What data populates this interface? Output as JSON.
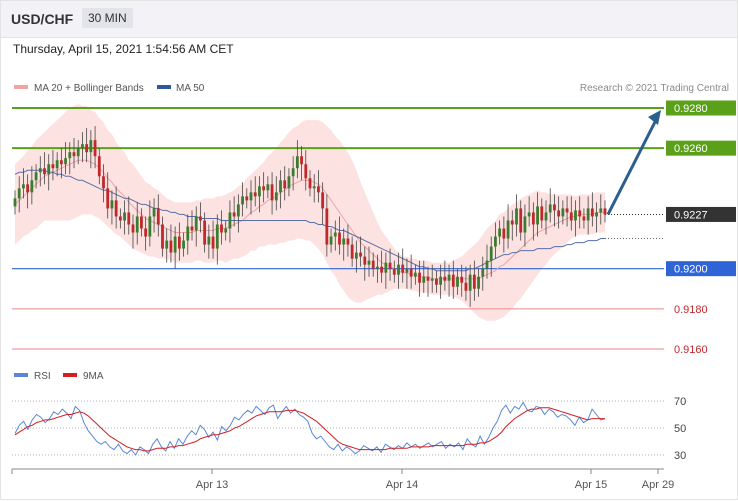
{
  "header": {
    "pair": "USD/CHF",
    "timeframe": "30 MIN",
    "datetime": "Thursday, April 15, 2021 1:54:56 AM CET"
  },
  "legend": {
    "ma20": "MA 20 + Bollinger Bands",
    "ma50": "MA 50",
    "copyright": "Research © 2021 Trading Central",
    "rsi": "RSI",
    "rsi_ma": "9MA"
  },
  "colors": {
    "up_candle": "#3a7d2e",
    "down_candle": "#c0282c",
    "bollinger_fill": "#fde0e0",
    "ma20": "#f0a4a4",
    "ma50": "#5a6fa8",
    "resistance": "#5aa018",
    "support_blue": "#2f64d6",
    "support_red": "#e88a8a",
    "current": "#333333",
    "arrow": "#2b5f8e",
    "rsi": "#5b86d6",
    "rsi_ma": "#d02020"
  },
  "chart_data": [
    {
      "type": "candlestick",
      "title": "USD/CHF",
      "x_ticks": [
        "Apr 13",
        "Apr 14",
        "Apr 15",
        "Apr 29"
      ],
      "price_levels": [
        {
          "value": 0.928,
          "label": "0.9280",
          "kind": "resistance"
        },
        {
          "value": 0.926,
          "label": "0.9260",
          "kind": "resistance"
        },
        {
          "value": 0.9227,
          "label": "0.9227",
          "kind": "last"
        },
        {
          "value": 0.92,
          "label": "0.9200",
          "kind": "support"
        },
        {
          "value": 0.918,
          "label": "0.9180",
          "kind": "support"
        },
        {
          "value": 0.916,
          "label": "0.9160",
          "kind": "support"
        }
      ],
      "close": [
        0.9235,
        0.924,
        0.9242,
        0.9238,
        0.9244,
        0.9248,
        0.925,
        0.9247,
        0.9252,
        0.925,
        0.9254,
        0.9252,
        0.9255,
        0.9258,
        0.9256,
        0.926,
        0.9262,
        0.9258,
        0.9264,
        0.9256,
        0.9246,
        0.924,
        0.923,
        0.9234,
        0.9226,
        0.9224,
        0.9228,
        0.9222,
        0.9218,
        0.9226,
        0.922,
        0.9216,
        0.9226,
        0.923,
        0.9222,
        0.921,
        0.9214,
        0.9208,
        0.9216,
        0.921,
        0.9214,
        0.9221,
        0.9219,
        0.9226,
        0.9224,
        0.9212,
        0.9216,
        0.921,
        0.9222,
        0.9218,
        0.922,
        0.9228,
        0.9226,
        0.9232,
        0.9236,
        0.9234,
        0.9238,
        0.9236,
        0.9241,
        0.9239,
        0.9242,
        0.9234,
        0.9238,
        0.9244,
        0.924,
        0.9246,
        0.925,
        0.9256,
        0.9252,
        0.9245,
        0.924,
        0.9241,
        0.9238,
        0.923,
        0.9212,
        0.9216,
        0.9218,
        0.9212,
        0.9215,
        0.9212,
        0.9205,
        0.9208,
        0.9206,
        0.9202,
        0.9204,
        0.92,
        0.9201,
        0.9198,
        0.9203,
        0.92,
        0.9197,
        0.9202,
        0.9198,
        0.92,
        0.9196,
        0.9198,
        0.9193,
        0.9196,
        0.9194,
        0.9195,
        0.9192,
        0.9196,
        0.9194,
        0.9197,
        0.9191,
        0.9196,
        0.9193,
        0.9189,
        0.9197,
        0.919,
        0.9196,
        0.92,
        0.9204,
        0.9211,
        0.9216,
        0.922,
        0.9215,
        0.9224,
        0.9222,
        0.923,
        0.9218,
        0.9226,
        0.9228,
        0.9222,
        0.9231,
        0.9224,
        0.9228,
        0.9232,
        0.9229,
        0.9226,
        0.923,
        0.9228,
        0.9224,
        0.9229,
        0.9226,
        0.9224,
        0.923,
        0.9226,
        0.9228,
        0.923,
        0.9227
      ],
      "ma20": [
        0.9232,
        0.9234,
        0.9236,
        0.9238,
        0.924,
        0.9242,
        0.9244,
        0.9246,
        0.9247,
        0.9248,
        0.9249,
        0.925,
        0.9251,
        0.9252,
        0.9253,
        0.9254,
        0.9254,
        0.9254,
        0.9253,
        0.9252,
        0.925,
        0.9248,
        0.9245,
        0.9243,
        0.924,
        0.9238,
        0.9236,
        0.9233,
        0.9231,
        0.9229,
        0.9227,
        0.9225,
        0.9224,
        0.9223,
        0.9222,
        0.9221,
        0.922,
        0.9219,
        0.9218,
        0.9218,
        0.9218,
        0.9218,
        0.9218,
        0.9219,
        0.9219,
        0.9219,
        0.9219,
        0.9219,
        0.922,
        0.922,
        0.922,
        0.9221,
        0.9222,
        0.9223,
        0.9224,
        0.9226,
        0.9228,
        0.9229,
        0.9231,
        0.9232,
        0.9234,
        0.9235,
        0.9236,
        0.9238,
        0.9239,
        0.9241,
        0.9242,
        0.9243,
        0.9244,
        0.9244,
        0.9244,
        0.9243,
        0.9242,
        0.924,
        0.9237,
        0.9234,
        0.9231,
        0.9228,
        0.9225,
        0.9222,
        0.9219,
        0.9216,
        0.9213,
        0.9211,
        0.9209,
        0.9207,
        0.9205,
        0.9203,
        0.9202,
        0.9201,
        0.92,
        0.9199,
        0.9198,
        0.9198,
        0.9197,
        0.9197,
        0.9196,
        0.9196,
        0.9196,
        0.9195,
        0.9195,
        0.9195,
        0.9195,
        0.9195,
        0.9195,
        0.9195,
        0.9195,
        0.9195,
        0.9195,
        0.9195,
        0.9195,
        0.9196,
        0.9197,
        0.9198,
        0.9199,
        0.9201,
        0.9202,
        0.9204,
        0.9206,
        0.9208,
        0.921,
        0.9212,
        0.9214,
        0.9216,
        0.9218,
        0.9219,
        0.922,
        0.9221,
        0.9222,
        0.9223,
        0.9224,
        0.9225,
        0.9226,
        0.9226,
        0.9227,
        0.9227,
        0.9227,
        0.9227,
        0.9228,
        0.9228,
        0.9228
      ],
      "ma50": [
        0.9247,
        0.9248,
        0.9248,
        0.9249,
        0.9249,
        0.9249,
        0.9249,
        0.9249,
        0.9248,
        0.9248,
        0.9247,
        0.9247,
        0.9246,
        0.9246,
        0.9245,
        0.9244,
        0.9244,
        0.9243,
        0.9242,
        0.9241,
        0.924,
        0.9239,
        0.9239,
        0.9238,
        0.9237,
        0.9236,
        0.9235,
        0.9235,
        0.9234,
        0.9233,
        0.9232,
        0.9232,
        0.9231,
        0.923,
        0.923,
        0.9229,
        0.9229,
        0.9228,
        0.9228,
        0.9227,
        0.9227,
        0.9226,
        0.9226,
        0.9226,
        0.9225,
        0.9225,
        0.9225,
        0.9225,
        0.9225,
        0.9224,
        0.9224,
        0.9224,
        0.9224,
        0.9224,
        0.9224,
        0.9224,
        0.9224,
        0.9224,
        0.9224,
        0.9224,
        0.9224,
        0.9224,
        0.9224,
        0.9224,
        0.9224,
        0.9224,
        0.9224,
        0.9224,
        0.9224,
        0.9224,
        0.9223,
        0.9223,
        0.9222,
        0.9222,
        0.9221,
        0.9221,
        0.922,
        0.9219,
        0.9219,
        0.9218,
        0.9217,
        0.9216,
        0.9215,
        0.9214,
        0.9213,
        0.9212,
        0.9211,
        0.921,
        0.9209,
        0.9208,
        0.9207,
        0.9206,
        0.9205,
        0.9204,
        0.9203,
        0.9202,
        0.9201,
        0.9201,
        0.92,
        0.92,
        0.9199,
        0.9199,
        0.9199,
        0.9199,
        0.9199,
        0.9199,
        0.9199,
        0.9199,
        0.92,
        0.92,
        0.9201,
        0.9202,
        0.9203,
        0.9204,
        0.9205,
        0.9206,
        0.9207,
        0.9207,
        0.9208,
        0.9208,
        0.9209,
        0.9209,
        0.9209,
        0.9209,
        0.921,
        0.921,
        0.921,
        0.921,
        0.9211,
        0.9211,
        0.9211,
        0.9212,
        0.9212,
        0.9213,
        0.9213,
        0.9213,
        0.9214,
        0.9214,
        0.9214,
        0.9215,
        0.9215
      ],
      "bb_width": [
        0.002,
        0.002,
        0.002,
        0.0021,
        0.0021,
        0.0022,
        0.0022,
        0.0022,
        0.0023,
        0.0024,
        0.0025,
        0.0026,
        0.0027,
        0.0028,
        0.0028,
        0.0028,
        0.0027,
        0.0027,
        0.0026,
        0.0026,
        0.0025,
        0.0025,
        0.0024,
        0.0024,
        0.0023,
        0.0022,
        0.0022,
        0.0021,
        0.0021,
        0.002,
        0.0019,
        0.0018,
        0.0018,
        0.0017,
        0.0017,
        0.0016,
        0.0015,
        0.0015,
        0.0015,
        0.0015,
        0.0015,
        0.0015,
        0.0015,
        0.0015,
        0.0015,
        0.0016,
        0.0016,
        0.0016,
        0.0016,
        0.0016,
        0.0017,
        0.0017,
        0.0017,
        0.0018,
        0.0018,
        0.0019,
        0.0019,
        0.002,
        0.002,
        0.0021,
        0.0022,
        0.0023,
        0.0024,
        0.0025,
        0.0026,
        0.0027,
        0.0028,
        0.0028,
        0.0029,
        0.003,
        0.003,
        0.0031,
        0.0032,
        0.0033,
        0.0034,
        0.0035,
        0.0035,
        0.0036,
        0.0036,
        0.0036,
        0.0035,
        0.0033,
        0.003,
        0.0027,
        0.0024,
        0.0021,
        0.0018,
        0.0016,
        0.0014,
        0.0012,
        0.001,
        0.0009,
        0.0008,
        0.0008,
        0.0008,
        0.0008,
        0.0008,
        0.0008,
        0.0008,
        0.0008,
        0.0008,
        0.0008,
        0.0008,
        0.0008,
        0.0009,
        0.001,
        0.0011,
        0.0013,
        0.0015,
        0.0017,
        0.0019,
        0.0021,
        0.0023,
        0.0024,
        0.0025,
        0.0026,
        0.0026,
        0.0026,
        0.0026,
        0.0025,
        0.0025,
        0.0024,
        0.0023,
        0.0022,
        0.0021,
        0.0019,
        0.0018,
        0.0016,
        0.0015,
        0.0014,
        0.0013,
        0.0012,
        0.0011,
        0.001,
        0.001,
        0.001,
        0.001,
        0.001,
        0.001,
        0.001,
        0.001
      ]
    },
    {
      "type": "line",
      "title": "RSI",
      "y_ticks": [
        70,
        50,
        30
      ],
      "series": [
        {
          "name": "RSI",
          "values": [
            46,
            52,
            55,
            49,
            56,
            60,
            58,
            54,
            57,
            62,
            60,
            64,
            61,
            57,
            66,
            63,
            54,
            48,
            44,
            40,
            38,
            40,
            36,
            34,
            38,
            33,
            31,
            34,
            30,
            36,
            34,
            31,
            38,
            42,
            36,
            33,
            40,
            35,
            42,
            38,
            44,
            48,
            45,
            52,
            49,
            43,
            47,
            41,
            51,
            48,
            52,
            58,
            56,
            60,
            63,
            61,
            66,
            63,
            60,
            65,
            67,
            57,
            62,
            66,
            61,
            64,
            60,
            58,
            55,
            46,
            42,
            44,
            40,
            36,
            34,
            38,
            33,
            36,
            34,
            31,
            33,
            37,
            35,
            33,
            36,
            32,
            38,
            36,
            34,
            37,
            35,
            39,
            36,
            38,
            35,
            37,
            39,
            36,
            38,
            40,
            35,
            38,
            36,
            39,
            34,
            42,
            38,
            36,
            44,
            38,
            43,
            50,
            55,
            63,
            67,
            61,
            66,
            64,
            69,
            63,
            62,
            66,
            65,
            60,
            64,
            62,
            58,
            60,
            59,
            56,
            52,
            58,
            54,
            56,
            64,
            60,
            56,
            57
          ]
        },
        {
          "name": "9MA",
          "values": [
            45,
            47,
            49,
            51,
            52,
            54,
            55,
            56,
            56,
            57,
            58,
            59,
            60,
            60,
            61,
            62,
            61,
            59,
            56,
            53,
            50,
            47,
            44,
            42,
            40,
            38,
            36,
            35,
            34,
            34,
            33,
            33,
            34,
            35,
            35,
            35,
            36,
            36,
            37,
            37,
            38,
            39,
            40,
            42,
            43,
            44,
            45,
            45,
            46,
            47,
            48,
            50,
            51,
            53,
            55,
            57,
            59,
            60,
            61,
            62,
            62,
            62,
            62,
            63,
            63,
            63,
            62,
            61,
            59,
            57,
            55,
            52,
            49,
            46,
            43,
            40,
            38,
            37,
            36,
            35,
            34,
            34,
            34,
            34,
            34,
            34,
            34,
            35,
            35,
            35,
            35,
            35,
            36,
            36,
            36,
            36,
            36,
            37,
            37,
            37,
            37,
            37,
            37,
            37,
            37,
            38,
            38,
            38,
            39,
            39,
            40,
            42,
            44,
            47,
            51,
            54,
            57,
            59,
            61,
            63,
            64,
            64,
            65,
            65,
            65,
            64,
            63,
            62,
            61,
            60,
            59,
            58,
            57,
            56,
            57,
            57,
            57,
            57
          ]
        }
      ]
    }
  ]
}
